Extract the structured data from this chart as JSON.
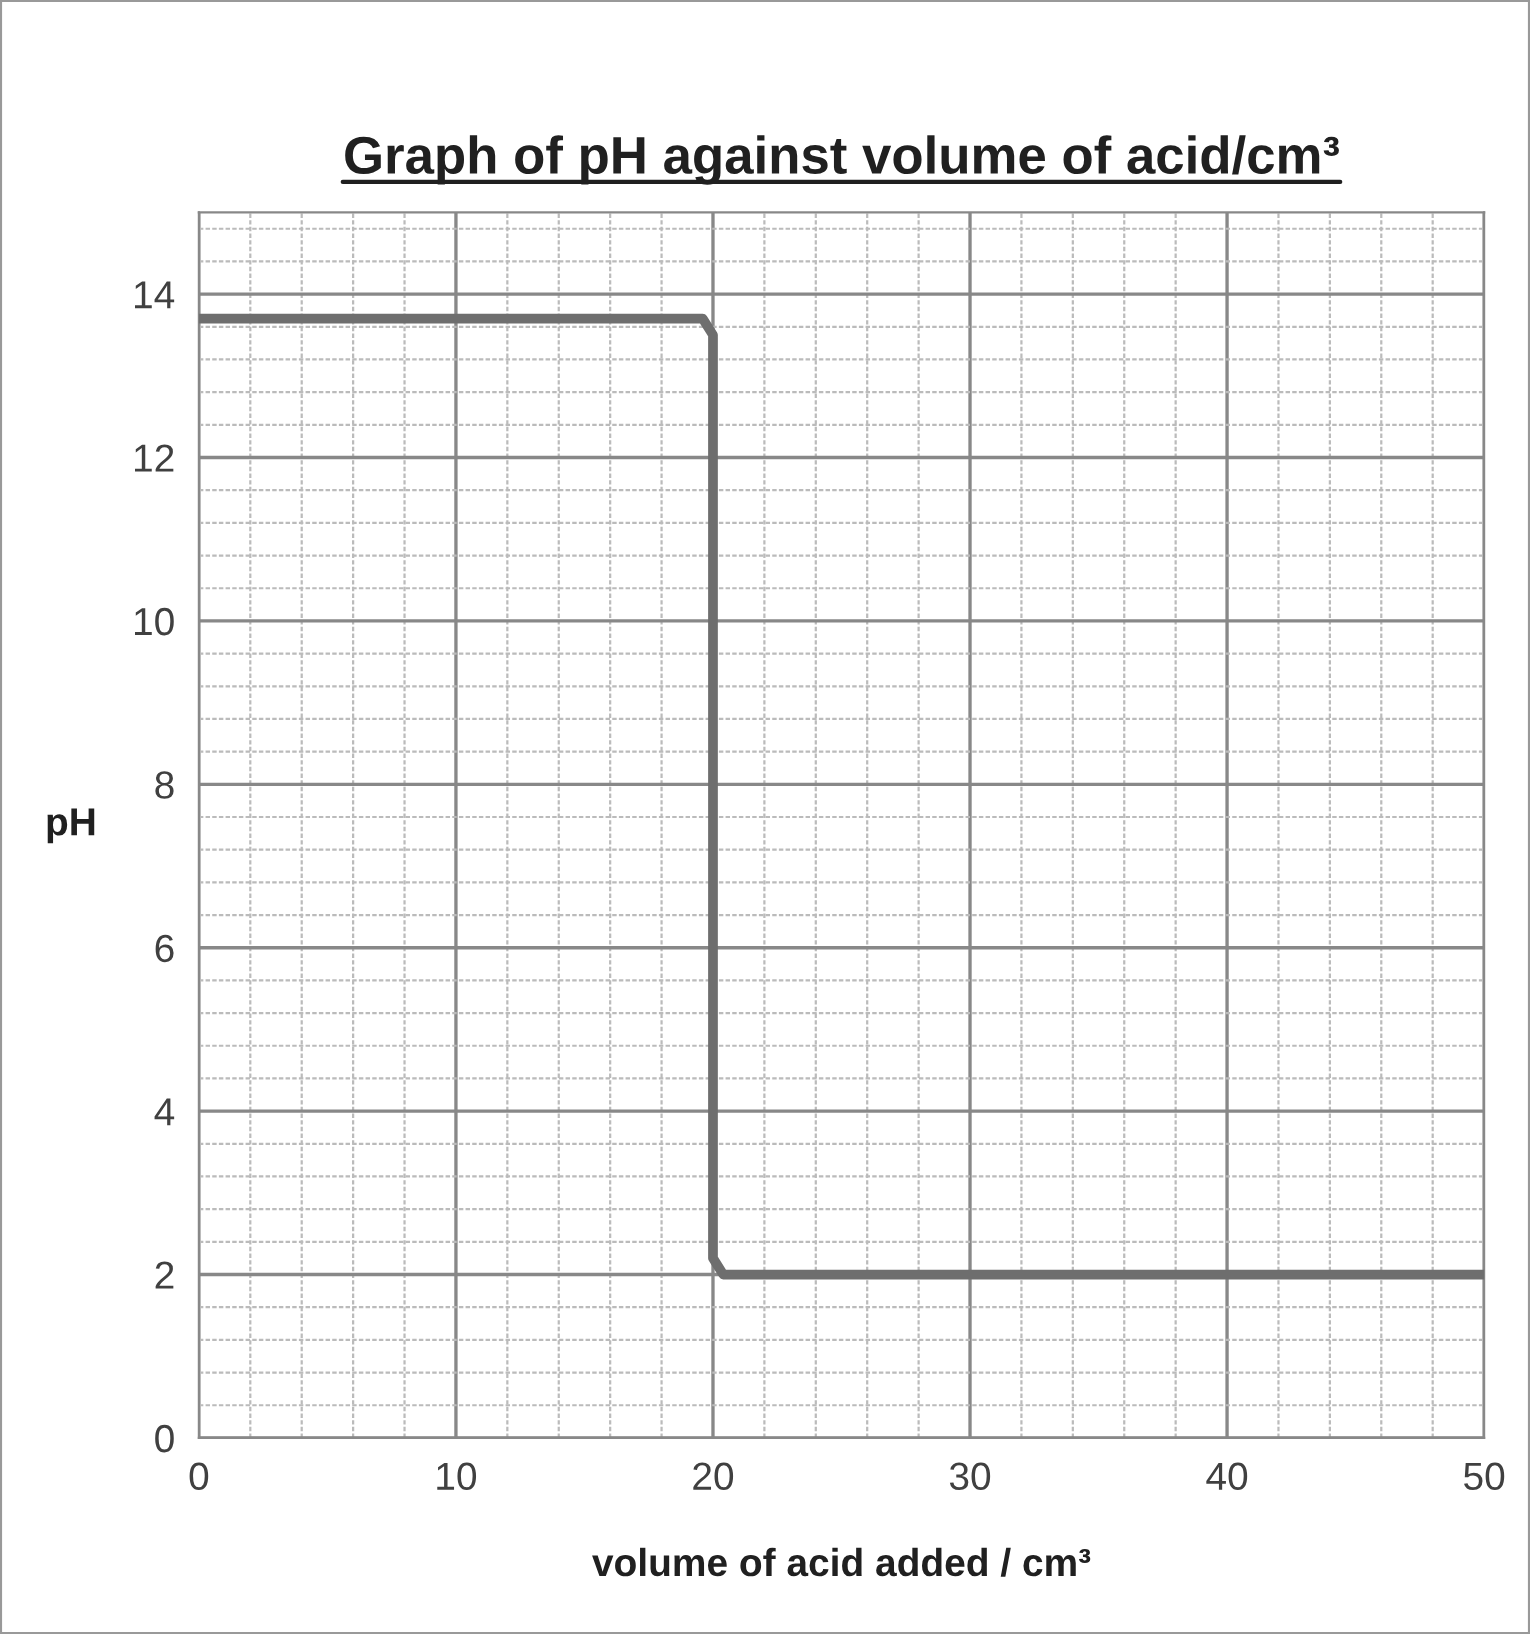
{
  "chart_data": {
    "type": "line",
    "title": "Graph of pH against volume of acid/cm³",
    "xlabel": "volume of acid added / cm³",
    "ylabel": "pH",
    "series": [
      {
        "color": "#6e6e6e",
        "x": [
          0,
          19.6,
          20,
          20,
          20.4,
          50
        ],
        "values": [
          13.7,
          13.7,
          13.5,
          2.2,
          2,
          2
        ]
      }
    ],
    "xlim": [
      0,
      50
    ],
    "ylim": [
      0,
      15
    ],
    "xticks": [
      0,
      10,
      20,
      30,
      40,
      50
    ],
    "yticks": [
      0,
      2,
      4,
      6,
      8,
      10,
      12,
      14
    ],
    "grid": true,
    "marker": "none",
    "line_style": "solid"
  }
}
